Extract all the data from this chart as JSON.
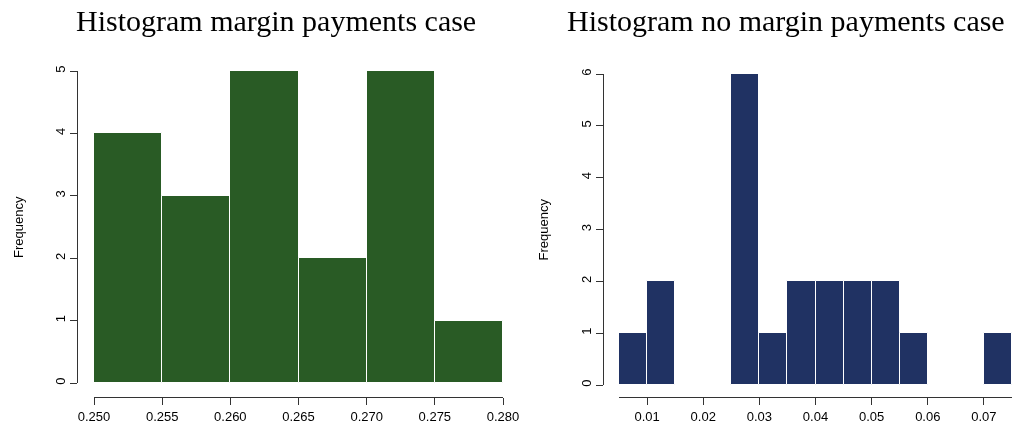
{
  "chart_data": [
    {
      "type": "histogram",
      "title": "Histogram margin payments case",
      "ylabel": "Frequency",
      "bins": [
        0.25,
        0.255,
        0.26,
        0.265,
        0.27,
        0.275,
        0.28
      ],
      "values": [
        4,
        3,
        5,
        2,
        5,
        1
      ],
      "color": "#295b25",
      "xlim": [
        0.25,
        0.28
      ],
      "xticks": [
        {
          "value": 0.25,
          "label": "0.250"
        },
        {
          "value": 0.255,
          "label": "0.255"
        },
        {
          "value": 0.26,
          "label": "0.260"
        },
        {
          "value": 0.265,
          "label": "0.265"
        },
        {
          "value": 0.27,
          "label": "0.270"
        },
        {
          "value": 0.275,
          "label": "0.275"
        },
        {
          "value": 0.28,
          "label": "0.280"
        }
      ],
      "ylim": [
        0,
        5
      ],
      "yticks": [
        0,
        1,
        2,
        3,
        4,
        5
      ]
    },
    {
      "type": "histogram",
      "title": "Histogram no margin payments case",
      "ylabel": "Frequency",
      "bins": [
        0.005,
        0.01,
        0.015,
        0.02,
        0.025,
        0.03,
        0.035,
        0.04,
        0.045,
        0.05,
        0.055,
        0.06,
        0.065,
        0.07,
        0.075
      ],
      "values": [
        1,
        2,
        0,
        0,
        6,
        1,
        2,
        2,
        2,
        2,
        1,
        0,
        0,
        1
      ],
      "color": "#203263",
      "xlim": [
        0.005,
        0.075
      ],
      "xticks": [
        0.01,
        0.02,
        0.03,
        0.04,
        0.05,
        0.06,
        0.07
      ],
      "ylim": [
        0,
        6
      ],
      "yticks": [
        0,
        1,
        2,
        3,
        4,
        5,
        6
      ]
    }
  ]
}
